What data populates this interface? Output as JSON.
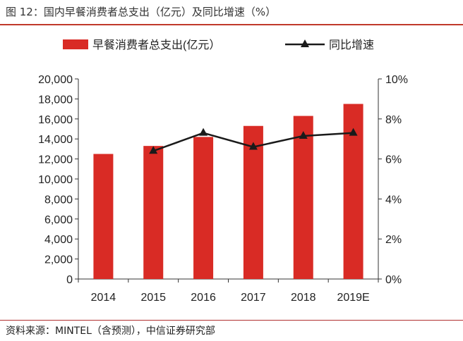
{
  "figure": {
    "title": "图 12：国内早餐消费者总支出（亿元）及同比增速（%）",
    "source": "资料来源：MINTEL（含预测），中信证券研究部"
  },
  "colors": {
    "bar": "#d92b25",
    "line": "#1a1a1a",
    "accent_rule": "#c0392b"
  },
  "chart_data": {
    "type": "bar",
    "categories": [
      "2014",
      "2015",
      "2016",
      "2017",
      "2018",
      "2019E"
    ],
    "series": [
      {
        "name": "早餐消费者总支出(亿元）",
        "type": "bar",
        "axis": "left",
        "values": [
          12500,
          13300,
          14200,
          15300,
          16300,
          17500
        ]
      },
      {
        "name": "同比增速",
        "type": "line",
        "axis": "right",
        "marker": "triangle",
        "values": [
          null,
          6.4,
          7.3,
          6.6,
          7.15,
          7.3
        ]
      }
    ],
    "y_left": {
      "lim": [
        0,
        20000
      ],
      "ticks": [
        0,
        2000,
        4000,
        6000,
        8000,
        10000,
        12000,
        14000,
        16000,
        18000,
        20000
      ],
      "tick_labels": [
        "0",
        "2,000",
        "4,000",
        "6,000",
        "8,000",
        "10,000",
        "12,000",
        "14,000",
        "16,000",
        "18,000",
        "20,000"
      ]
    },
    "y_right": {
      "lim": [
        0,
        10
      ],
      "ticks": [
        0,
        2,
        4,
        6,
        8,
        10
      ],
      "tick_labels": [
        "0%",
        "2%",
        "4%",
        "6%",
        "8%",
        "10%"
      ]
    },
    "grid": false,
    "legend": "top-center"
  }
}
